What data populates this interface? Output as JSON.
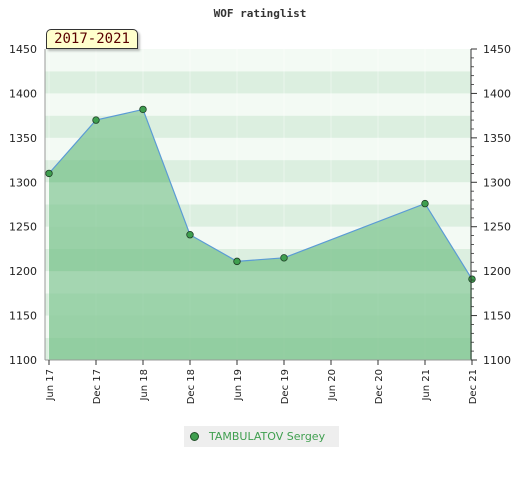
{
  "chart_data": {
    "type": "area",
    "title": "WOF ratinglist",
    "period_label": "2017-2021",
    "categories": [
      "Jun 17",
      "Dec 17",
      "Jun 18",
      "Dec 18",
      "Jun 19",
      "Dec 19",
      "Jun 20",
      "Dec 20",
      "Jun 21",
      "Dec 21"
    ],
    "series": [
      {
        "name": "TAMBULATOV Sergey",
        "x": [
          "Jun 17",
          "Dec 17",
          "Jun 18",
          "Dec 18",
          "Jun 19",
          "Dec 19",
          "Jun 21",
          "Dec 21"
        ],
        "values": [
          1310,
          1370,
          1382,
          1241,
          1211,
          1215,
          1276,
          1191
        ]
      }
    ],
    "ylim": [
      1100,
      1450
    ],
    "yticks": [
      1100,
      1150,
      1200,
      1250,
      1300,
      1350,
      1400,
      1450
    ],
    "y_axis_both_sides": true,
    "legend_position": "bottom",
    "colors": {
      "area": "#7dc68f",
      "line": "#5b9bd5",
      "marker": "#3f9f4f",
      "bands_light": "#dcefe0",
      "bands_white": "#f3faf4"
    }
  }
}
